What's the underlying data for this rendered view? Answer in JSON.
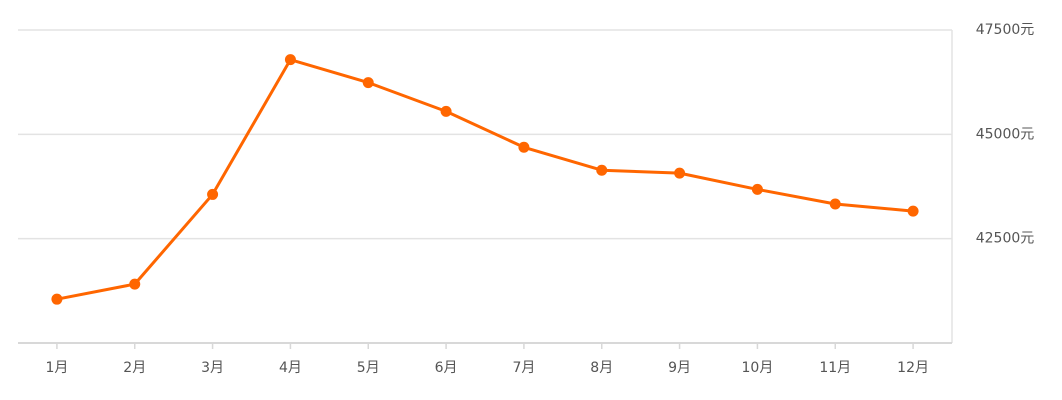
{
  "chart_data": {
    "type": "line",
    "categories": [
      "1月",
      "2月",
      "3月",
      "4月",
      "5月",
      "6月",
      "7月",
      "8月",
      "9月",
      "10月",
      "11月",
      "12月"
    ],
    "values": [
      41050,
      41410,
      43560,
      46790,
      46240,
      45550,
      44690,
      44140,
      44070,
      43680,
      43330,
      43160
    ],
    "color": "#ff6600",
    "ylim": [
      40000,
      47500
    ],
    "yticks": [
      {
        "value": 42500,
        "label": "42500元"
      },
      {
        "value": 45000,
        "label": "45000元"
      },
      {
        "value": 47500,
        "label": "47500元"
      }
    ],
    "grid": true
  }
}
